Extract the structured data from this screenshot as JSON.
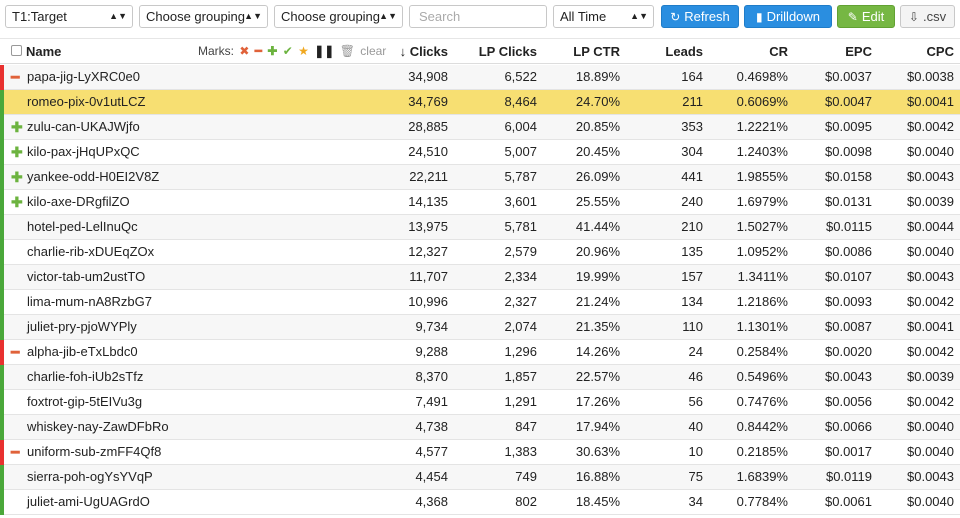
{
  "toolbar": {
    "target_select": "T1:Target",
    "grouping1": "Choose grouping",
    "grouping2": "Choose grouping",
    "search_placeholder": "Search",
    "period": "All Time",
    "refresh": "Refresh",
    "drilldown": "Drilldown",
    "edit": "Edit",
    "csv": ".csv"
  },
  "header": {
    "name": "Name",
    "marks_label": "Marks:",
    "clear": "clear",
    "clicks": "Clicks",
    "lp_clicks": "LP Clicks",
    "lp_ctr": "LP CTR",
    "leads": "Leads",
    "cr": "CR",
    "epc": "EPC",
    "cpc": "CPC"
  },
  "colors": {
    "red_bar": "#e8312f",
    "green_bar": "#4aa83a",
    "highlight": "#f7df72"
  },
  "rows": [
    {
      "mark": "minus",
      "bar": "red",
      "name": "papa-jig-LyXRC0e0",
      "clicks": "34,908",
      "lp_clicks": "6,522",
      "lp_ctr": "18.89%",
      "leads": "164",
      "cr": "0.4698%",
      "epc": "$0.0037",
      "cpc": "$0.0038"
    },
    {
      "mark": "",
      "bar": "green",
      "name": "romeo-pix-0v1utLCZ",
      "clicks": "34,769",
      "lp_clicks": "8,464",
      "lp_ctr": "24.70%",
      "leads": "211",
      "cr": "0.6069%",
      "epc": "$0.0047",
      "cpc": "$0.0041",
      "highlight": true
    },
    {
      "mark": "plus",
      "bar": "green",
      "name": "zulu-can-UKAJWjfo",
      "clicks": "28,885",
      "lp_clicks": "6,004",
      "lp_ctr": "20.85%",
      "leads": "353",
      "cr": "1.2221%",
      "epc": "$0.0095",
      "cpc": "$0.0042"
    },
    {
      "mark": "plus",
      "bar": "green",
      "name": "kilo-pax-jHqUPxQC",
      "clicks": "24,510",
      "lp_clicks": "5,007",
      "lp_ctr": "20.45%",
      "leads": "304",
      "cr": "1.2403%",
      "epc": "$0.0098",
      "cpc": "$0.0040"
    },
    {
      "mark": "plus",
      "bar": "green",
      "name": "yankee-odd-H0EI2V8Z",
      "clicks": "22,211",
      "lp_clicks": "5,787",
      "lp_ctr": "26.09%",
      "leads": "441",
      "cr": "1.9855%",
      "epc": "$0.0158",
      "cpc": "$0.0043"
    },
    {
      "mark": "plus",
      "bar": "green",
      "name": "kilo-axe-DRgfilZO",
      "clicks": "14,135",
      "lp_clicks": "3,601",
      "lp_ctr": "25.55%",
      "leads": "240",
      "cr": "1.6979%",
      "epc": "$0.0131",
      "cpc": "$0.0039"
    },
    {
      "mark": "",
      "bar": "green",
      "name": "hotel-ped-LelInuQc",
      "clicks": "13,975",
      "lp_clicks": "5,781",
      "lp_ctr": "41.44%",
      "leads": "210",
      "cr": "1.5027%",
      "epc": "$0.0115",
      "cpc": "$0.0044"
    },
    {
      "mark": "",
      "bar": "green",
      "name": "charlie-rib-xDUEqZOx",
      "clicks": "12,327",
      "lp_clicks": "2,579",
      "lp_ctr": "20.96%",
      "leads": "135",
      "cr": "1.0952%",
      "epc": "$0.0086",
      "cpc": "$0.0040"
    },
    {
      "mark": "",
      "bar": "green",
      "name": "victor-tab-um2ustTO",
      "clicks": "11,707",
      "lp_clicks": "2,334",
      "lp_ctr": "19.99%",
      "leads": "157",
      "cr": "1.3411%",
      "epc": "$0.0107",
      "cpc": "$0.0043"
    },
    {
      "mark": "",
      "bar": "green",
      "name": "lima-mum-nA8RzbG7",
      "clicks": "10,996",
      "lp_clicks": "2,327",
      "lp_ctr": "21.24%",
      "leads": "134",
      "cr": "1.2186%",
      "epc": "$0.0093",
      "cpc": "$0.0042"
    },
    {
      "mark": "",
      "bar": "green",
      "name": "juliet-pry-pjoWYPly",
      "clicks": "9,734",
      "lp_clicks": "2,074",
      "lp_ctr": "21.35%",
      "leads": "110",
      "cr": "1.1301%",
      "epc": "$0.0087",
      "cpc": "$0.0041"
    },
    {
      "mark": "minus",
      "bar": "red",
      "name": "alpha-jib-eTxLbdc0",
      "clicks": "9,288",
      "lp_clicks": "1,296",
      "lp_ctr": "14.26%",
      "leads": "24",
      "cr": "0.2584%",
      "epc": "$0.0020",
      "cpc": "$0.0042"
    },
    {
      "mark": "",
      "bar": "green",
      "name": "charlie-foh-iUb2sTfz",
      "clicks": "8,370",
      "lp_clicks": "1,857",
      "lp_ctr": "22.57%",
      "leads": "46",
      "cr": "0.5496%",
      "epc": "$0.0043",
      "cpc": "$0.0039"
    },
    {
      "mark": "",
      "bar": "green",
      "name": "foxtrot-gip-5tEIVu3g",
      "clicks": "7,491",
      "lp_clicks": "1,291",
      "lp_ctr": "17.26%",
      "leads": "56",
      "cr": "0.7476%",
      "epc": "$0.0056",
      "cpc": "$0.0042"
    },
    {
      "mark": "",
      "bar": "green",
      "name": "whiskey-nay-ZawDFbRo",
      "clicks": "4,738",
      "lp_clicks": "847",
      "lp_ctr": "17.94%",
      "leads": "40",
      "cr": "0.8442%",
      "epc": "$0.0066",
      "cpc": "$0.0040"
    },
    {
      "mark": "minus",
      "bar": "red",
      "name": "uniform-sub-zmFF4Qf8",
      "clicks": "4,577",
      "lp_clicks": "1,383",
      "lp_ctr": "30.63%",
      "leads": "10",
      "cr": "0.2185%",
      "epc": "$0.0017",
      "cpc": "$0.0040"
    },
    {
      "mark": "",
      "bar": "green",
      "name": "sierra-poh-ogYsYVqP",
      "clicks": "4,454",
      "lp_clicks": "749",
      "lp_ctr": "16.88%",
      "leads": "75",
      "cr": "1.6839%",
      "epc": "$0.0119",
      "cpc": "$0.0043"
    },
    {
      "mark": "",
      "bar": "green",
      "name": "juliet-ami-UgUAGrdO",
      "clicks": "4,368",
      "lp_clicks": "802",
      "lp_ctr": "18.45%",
      "leads": "34",
      "cr": "0.7784%",
      "epc": "$0.0061",
      "cpc": "$0.0040"
    }
  ]
}
